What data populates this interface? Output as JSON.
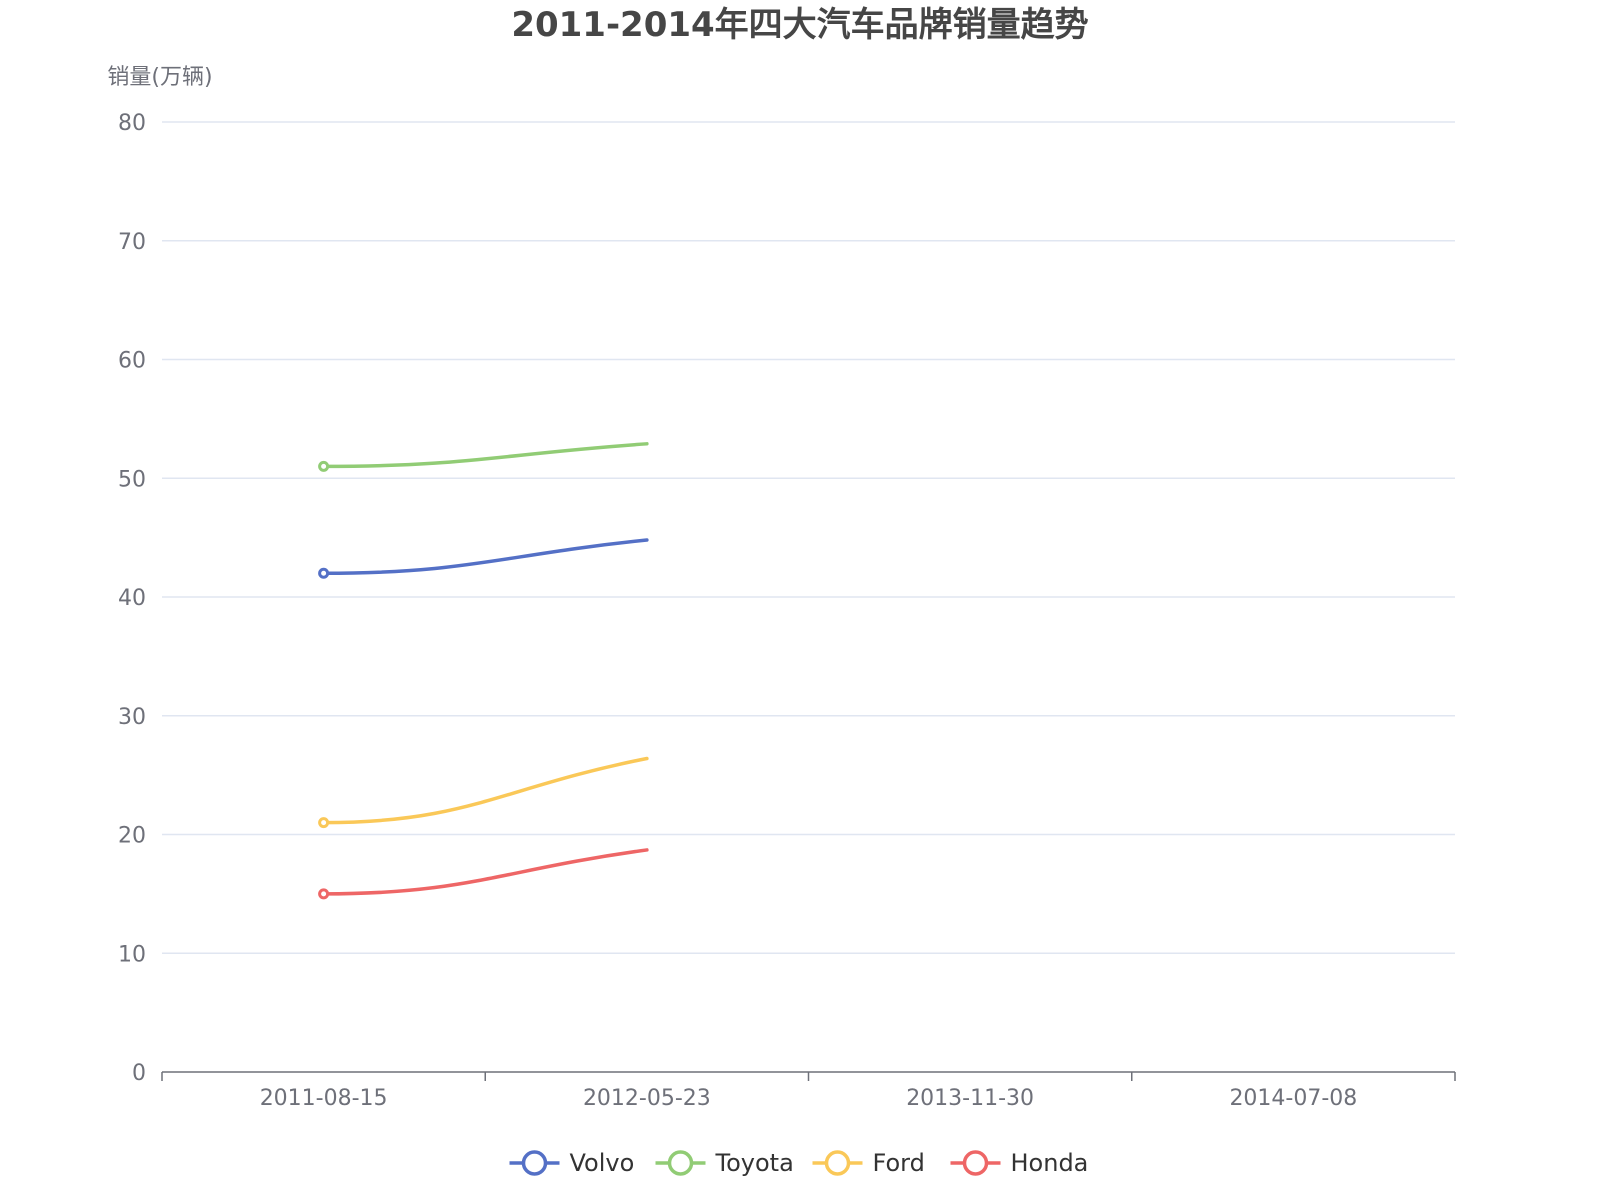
{
  "chart_data": {
    "type": "line",
    "title": "2011-2014年四大汽车品牌销量趋势",
    "ylabel": "销量(万辆)",
    "xlabel": "",
    "x_ticks": [
      "2011-08-15",
      "2012-05-23",
      "2013-11-30",
      "2014-07-08"
    ],
    "ylim": [
      0,
      80
    ],
    "y_ticks": [
      0,
      10,
      20,
      30,
      40,
      50,
      60,
      70,
      80
    ],
    "categories": [
      "2011-08-15",
      "2012-05-23"
    ],
    "legend_position": "bottom-center",
    "grid": true,
    "series": [
      {
        "name": "Volvo",
        "color": "#5470c6",
        "values": [
          42,
          44.8
        ]
      },
      {
        "name": "Toyota",
        "color": "#91cc75",
        "values": [
          51,
          52.9
        ]
      },
      {
        "name": "Ford",
        "color": "#fac858",
        "values": [
          21,
          26.4
        ]
      },
      {
        "name": "Honda",
        "color": "#ee6666",
        "values": [
          15,
          18.7
        ]
      }
    ]
  }
}
